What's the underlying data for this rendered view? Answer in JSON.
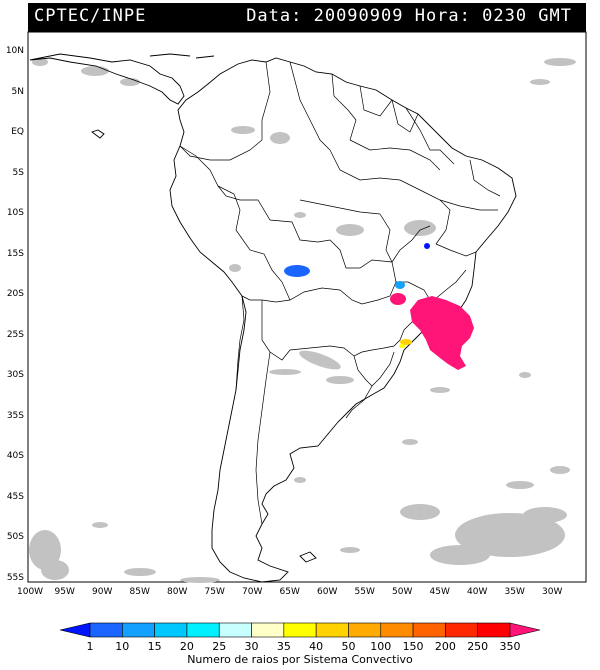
{
  "header": {
    "left": "CPTEC/INPE",
    "right": "Data: 20090909 Hora: 0230 GMT"
  },
  "axes": {
    "lat_labels": [
      "10N",
      "5N",
      "EQ",
      "5S",
      "10S",
      "15S",
      "20S",
      "25S",
      "30S",
      "35S",
      "40S",
      "45S",
      "50S",
      "55S"
    ],
    "lon_labels": [
      "100W",
      "95W",
      "90W",
      "85W",
      "80W",
      "75W",
      "70W",
      "65W",
      "60W",
      "55W",
      "50W",
      "45W",
      "40W",
      "35W",
      "30W"
    ]
  },
  "legend": {
    "caption": "Numero de raios por Sistema Convectivo",
    "ticks": [
      "1",
      "10",
      "15",
      "20",
      "25",
      "30",
      "35",
      "40",
      "50",
      "100",
      "150",
      "200",
      "250",
      "350"
    ],
    "colors": [
      "#0014ff",
      "#1a64ff",
      "#14a0ff",
      "#00c8ff",
      "#00f0ff",
      "#c8ffff",
      "#ffffc8",
      "#ffff00",
      "#ffd200",
      "#ffaa00",
      "#ff8c00",
      "#ff6400",
      "#ff2800",
      "#ff0000",
      "#ff1478"
    ]
  },
  "map": {
    "land_fill": "#ffffff",
    "cloud_color": "#bdbdbd",
    "convective_systems": [
      {
        "lon": -65,
        "lat": -16.5,
        "color": "#1a64ff"
      },
      {
        "lon": -46.5,
        "lat": -14,
        "color": "#0014ff"
      },
      {
        "lon": -50,
        "lat": -19,
        "color": "#14a0ff"
      },
      {
        "lon": -49.5,
        "lat": -21,
        "color": "#ff1478"
      },
      {
        "lon": -44.5,
        "lat": -24.5,
        "color": "#ff1478"
      },
      {
        "lon": -49,
        "lat": -26,
        "color": "#ffd200"
      }
    ]
  }
}
